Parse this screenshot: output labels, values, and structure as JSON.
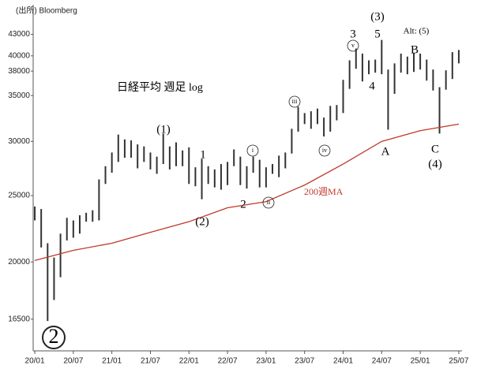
{
  "chart_data": {
    "type": "ohlc",
    "title": "日経平均 週足 log",
    "source": "(出所) Bloomberg",
    "log_y": true,
    "xlim": [
      -0.25,
      66.5
    ],
    "xticks": [
      {
        "value": 0,
        "label": "20/01"
      },
      {
        "value": 6,
        "label": "20/07"
      },
      {
        "value": 12,
        "label": "21/01"
      },
      {
        "value": 18,
        "label": "21/07"
      },
      {
        "value": 24,
        "label": "22/01"
      },
      {
        "value": 30,
        "label": "22/07"
      },
      {
        "value": 36,
        "label": "23/01"
      },
      {
        "value": 42,
        "label": "23/07"
      },
      {
        "value": 48,
        "label": "24/01"
      },
      {
        "value": 54,
        "label": "24/07"
      },
      {
        "value": 60,
        "label": "25/01"
      },
      {
        "value": 66,
        "label": "25/07"
      }
    ],
    "ylim": [
      15030,
      47000
    ],
    "yticks": [
      16500,
      20000,
      25000,
      30000,
      35000,
      38000,
      40000,
      43000
    ],
    "price": {
      "color": "#333333",
      "x": [
        0,
        1,
        2,
        3,
        4,
        5,
        6,
        7,
        8,
        9,
        10,
        11,
        12,
        13,
        14,
        15,
        16,
        17,
        18,
        19,
        20,
        21,
        22,
        23,
        24,
        25,
        26,
        27,
        28,
        29,
        30,
        31,
        32,
        33,
        34,
        35,
        36,
        37,
        38,
        39,
        40,
        41,
        42,
        43,
        44,
        45,
        46,
        47,
        48,
        49,
        50,
        51,
        52,
        53,
        54,
        55,
        56,
        57,
        58,
        59,
        60,
        61,
        62,
        63,
        64,
        65,
        66
      ],
      "high": [
        24100,
        23900,
        21300,
        20300,
        22000,
        23200,
        23000,
        23400,
        23600,
        23800,
        26400,
        27600,
        28900,
        30700,
        30200,
        30100,
        29700,
        29500,
        28900,
        28500,
        30800,
        29500,
        29900,
        29100,
        29400,
        27500,
        28300,
        27600,
        27300,
        27800,
        28000,
        29200,
        28500,
        27600,
        28500,
        28200,
        27500,
        27800,
        28600,
        28900,
        31300,
        33700,
        33000,
        33200,
        33500,
        32500,
        33800,
        33900,
        36900,
        39400,
        41000,
        40300,
        39400,
        39500,
        42200,
        38200,
        39000,
        40300,
        39900,
        40400,
        40300,
        39500,
        38200,
        36000,
        38100,
        40500,
        40800
      ],
      "low": [
        23000,
        21000,
        16400,
        17600,
        19000,
        21500,
        21700,
        22000,
        22900,
        22900,
        23000,
        26000,
        27000,
        28000,
        28400,
        28400,
        27400,
        28000,
        27300,
        26900,
        27800,
        27300,
        27600,
        27600,
        26000,
        25800,
        24700,
        26000,
        25700,
        25500,
        25900,
        27600,
        25900,
        25600,
        27000,
        25700,
        25700,
        26900,
        26600,
        27400,
        28800,
        31000,
        31800,
        31300,
        31800,
        30500,
        31000,
        32200,
        33000,
        35800,
        38300,
        36700,
        37600,
        37800,
        37600,
        31200,
        35200,
        37800,
        37600,
        37900,
        38200,
        36800,
        35600,
        30800,
        35700,
        37000,
        39000
      ]
    },
    "ma": {
      "name": "200週MA",
      "color": "#c0392b",
      "x": [
        0,
        6,
        12,
        18,
        24,
        30,
        36,
        42,
        48,
        54,
        60,
        66
      ],
      "values": [
        20100,
        20800,
        21300,
        22100,
        22900,
        24000,
        24500,
        25900,
        27800,
        30000,
        31100,
        31800
      ]
    },
    "annotations": [
      {
        "text": "(1)"
      },
      {
        "text": "1"
      },
      {
        "text": "(2)"
      },
      {
        "text": "2"
      },
      {
        "text": "i",
        "circled": true
      },
      {
        "text": "ii",
        "circled": true
      },
      {
        "text": "iii",
        "circled": true
      },
      {
        "text": "iv",
        "circled": true
      },
      {
        "text": "v",
        "circled": true
      },
      {
        "text": "3"
      },
      {
        "text": "(3)"
      },
      {
        "text": "5"
      },
      {
        "text": "Alt: (5)"
      },
      {
        "text": "4"
      },
      {
        "text": "B"
      },
      {
        "text": "A"
      },
      {
        "text": "C"
      },
      {
        "text": "(4)"
      },
      {
        "text": "2",
        "circled": true
      }
    ]
  }
}
